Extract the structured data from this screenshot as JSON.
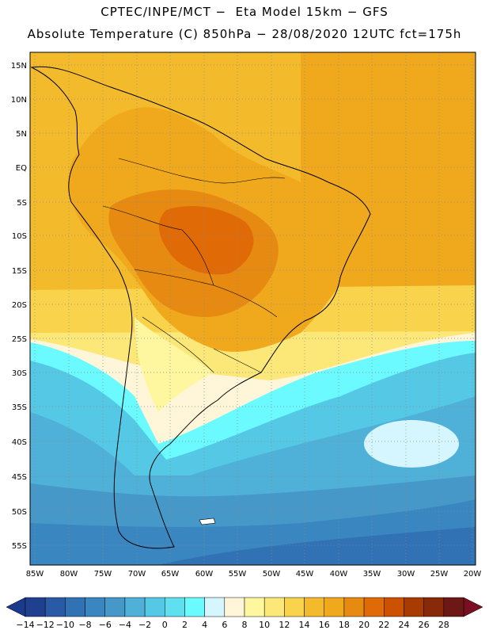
{
  "header": {
    "line1": "CPTEC/INPE/MCT −  Eta Model 15km − GFS",
    "line2": "Absolute Temperature (C) 850hPa − 28/08/2020 12UTC fct=175h"
  },
  "map": {
    "latitude_labels": [
      "15N",
      "10N",
      "5N",
      "EQ",
      "5S",
      "10S",
      "15S",
      "20S",
      "25S",
      "30S",
      "35S",
      "40S",
      "45S",
      "50S",
      "55S"
    ],
    "longitude_labels": [
      "85W",
      "80W",
      "75W",
      "70W",
      "65W",
      "60W",
      "55W",
      "50W",
      "45W",
      "40W",
      "35W",
      "30W",
      "25W",
      "20W"
    ]
  },
  "colorbar": {
    "ticks": [
      "-14",
      "-12",
      "-10",
      "-8",
      "-6",
      "-4",
      "-2",
      "0",
      "2",
      "4",
      "6",
      "8",
      "10",
      "12",
      "14",
      "16",
      "18",
      "20",
      "22",
      "24",
      "26",
      "28"
    ],
    "colors": [
      "#1f3f8f",
      "#2a5aa6",
      "#3072b4",
      "#3a86c0",
      "#4698c8",
      "#4fb0d8",
      "#55c8e6",
      "#5fe0f0",
      "#6afaff",
      "#d6f6ff",
      "#fff6da",
      "#fff79f",
      "#fbe879",
      "#f8d34b",
      "#f3bb2c",
      "#f0a91c",
      "#e68a12",
      "#e06a05",
      "#cc5100",
      "#a83b00",
      "#882a09",
      "#6e1717"
    ],
    "under_color": "#1a3a8c",
    "over_color": "#7a0f22"
  }
}
